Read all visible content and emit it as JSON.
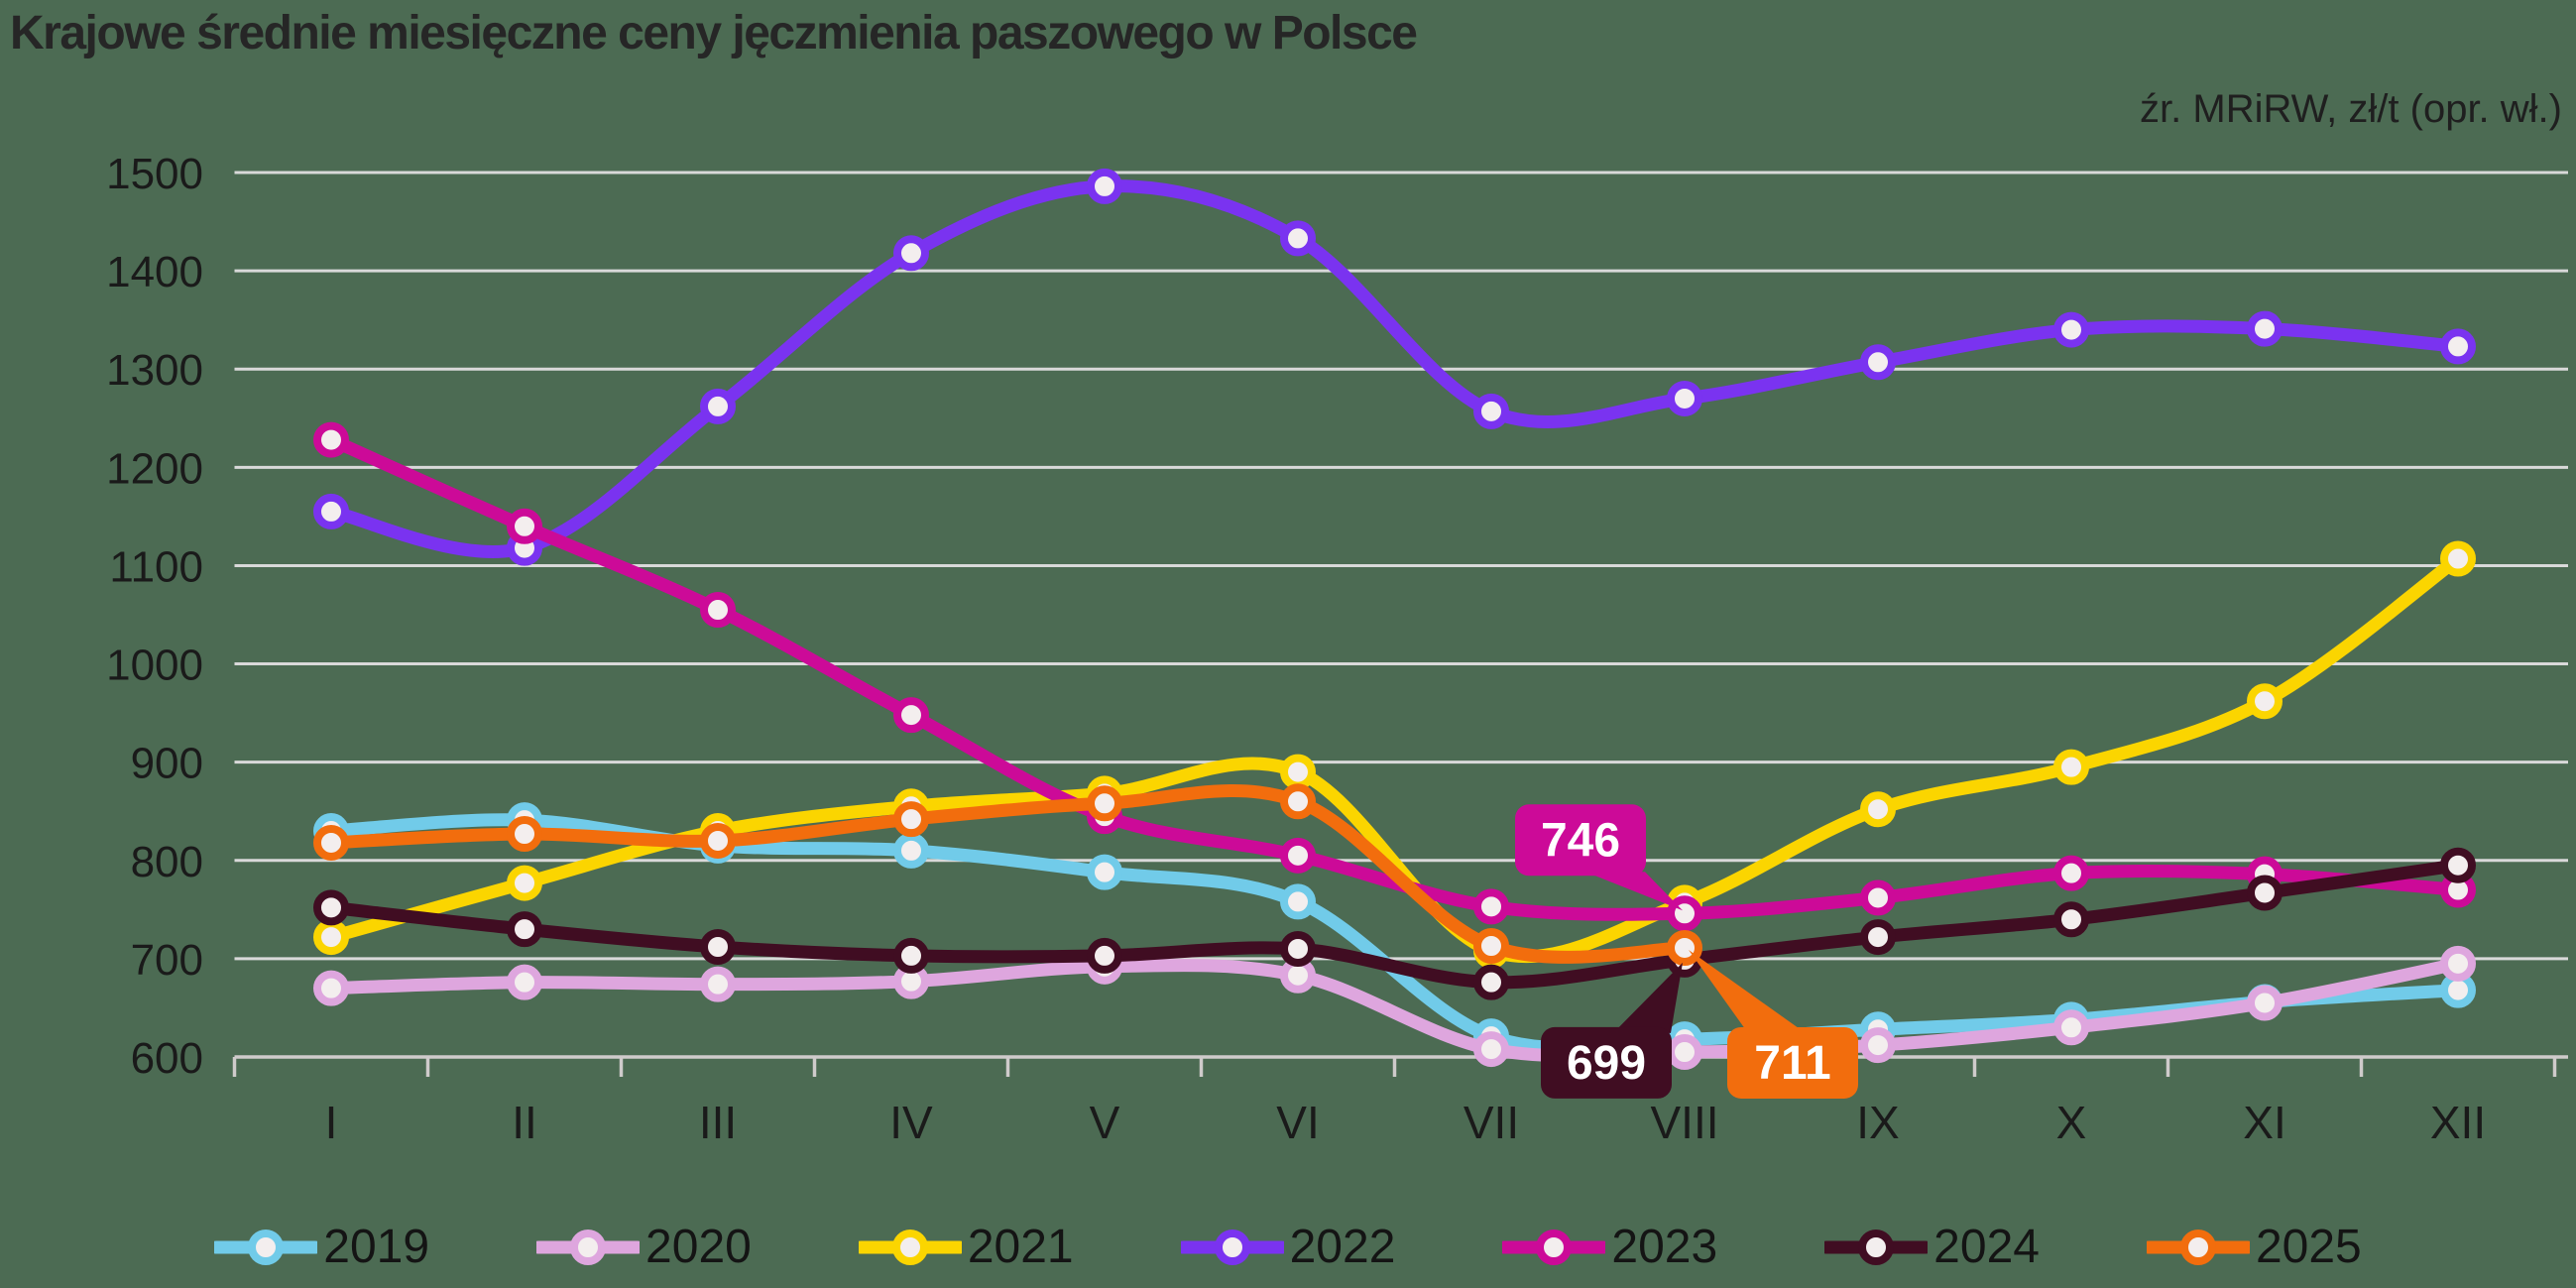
{
  "title": "Krajowe średnie miesięczne ceny jęczmienia paszowego w Polsce",
  "source_note": "źr. MRiRW, zł/t (opr. wł.)",
  "colors": {
    "background": "#4C6B53",
    "gridline": "#D9D9D9",
    "axis": "#CFCBCB",
    "text": "#1A1A1A",
    "marker_fill": "#F3EEEE"
  },
  "chart_data": {
    "type": "line",
    "title": "Krajowe średnie miesięczne ceny jęczmienia paszowego w Polsce",
    "subtitle": "źr. MRiRW, zł/t (opr. wł.)",
    "xlabel": "",
    "ylabel": "zł/t",
    "ylim": [
      600,
      1500
    ],
    "ytick_step": 100,
    "grid": "horizontal",
    "legend_position": "bottom",
    "categories": [
      "I",
      "II",
      "III",
      "IV",
      "V",
      "VI",
      "VII",
      "VIII",
      "IX",
      "X",
      "XI",
      "XII"
    ],
    "series": [
      {
        "name": "2019",
        "color": "#71CBE9",
        "values": [
          830,
          841,
          815,
          810,
          788,
          758,
          621,
          618,
          628,
          638,
          656,
          668
        ]
      },
      {
        "name": "2020",
        "color": "#DEA6DE",
        "values": [
          670,
          676,
          674,
          677,
          692,
          683,
          608,
          605,
          612,
          630,
          655,
          695
        ]
      },
      {
        "name": "2021",
        "color": "#FBD500",
        "values": [
          722,
          777,
          830,
          855,
          868,
          890,
          708,
          757,
          852,
          895,
          962,
          1107
        ]
      },
      {
        "name": "2022",
        "color": "#7A33F0",
        "values": [
          1155,
          1118,
          1262,
          1418,
          1486,
          1433,
          1257,
          1270,
          1307,
          1340,
          1341,
          1323
        ]
      },
      {
        "name": "2023",
        "color": "#CC0A98",
        "values": [
          1228,
          1140,
          1055,
          948,
          845,
          805,
          753,
          746,
          762,
          787,
          786,
          770
        ]
      },
      {
        "name": "2024",
        "color": "#400D22",
        "values": [
          752,
          730,
          712,
          703,
          703,
          710,
          676,
          699,
          722,
          740,
          767,
          795
        ]
      },
      {
        "name": "2025",
        "color": "#F26D0D",
        "values": [
          818,
          827,
          820,
          842,
          858,
          860,
          713,
          711
        ]
      }
    ],
    "annotations": [
      {
        "label": "746",
        "series": "2023",
        "category_index": 7,
        "value": 746,
        "placement": "above-left",
        "color": "#CC0A98"
      },
      {
        "label": "699",
        "series": "2024",
        "category_index": 7,
        "value": 699,
        "placement": "below-left",
        "color": "#400D22"
      },
      {
        "label": "711",
        "series": "2025",
        "category_index": 7,
        "value": 711,
        "placement": "below-right",
        "color": "#F26D0D"
      }
    ]
  }
}
